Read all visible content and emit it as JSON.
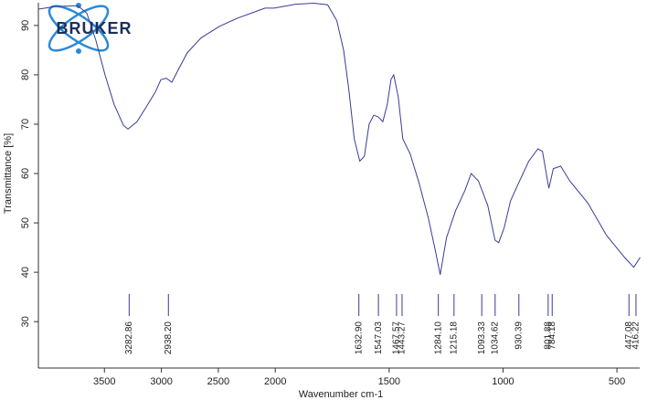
{
  "logo": "BRUKER",
  "chart_data": {
    "type": "line",
    "x_label": "Wavenumber cm-1",
    "y_label": "Transmittance [%]",
    "color": "#3a3a9a",
    "xlim": [
      4080,
      400
    ],
    "x_scale_break": 2000,
    "xticks": [
      3500,
      3000,
      2500,
      2000,
      1500,
      1000,
      500
    ],
    "ylim": [
      20.6,
      94.6
    ],
    "yticks": [
      30,
      40,
      50,
      60,
      70,
      80,
      90
    ],
    "x": [
      4080,
      3935,
      3735,
      3655,
      3575,
      3495,
      3415,
      3334,
      3294,
      3214,
      3133,
      3053,
      3005,
      2957,
      2908,
      2852,
      2772,
      2651,
      2491,
      2330,
      2210,
      2090,
      2009,
      1910,
      1830,
      1770,
      1730,
      1700,
      1677,
      1653,
      1629,
      1609,
      1588,
      1568,
      1548,
      1528,
      1508,
      1492,
      1480,
      1460,
      1440,
      1408,
      1368,
      1328,
      1300,
      1276,
      1248,
      1208,
      1168,
      1140,
      1108,
      1067,
      1035,
      1019,
      995,
      967,
      927,
      887,
      847,
      827,
      799,
      779,
      747,
      707,
      627,
      546,
      466,
      426,
      398
    ],
    "values": [
      93.3,
      93.8,
      94,
      92.5,
      87,
      80,
      74,
      69.8,
      69,
      70.5,
      73.5,
      76.5,
      79,
      79.3,
      78.5,
      81,
      84.5,
      87.5,
      89.8,
      91.5,
      92.5,
      93.5,
      93.5,
      94.3,
      94.5,
      94.2,
      91,
      85,
      77,
      67,
      62.5,
      63.5,
      70,
      71.8,
      71.5,
      70.5,
      74,
      79,
      80,
      75.5,
      67,
      64,
      58,
      51,
      45,
      39.5,
      47,
      52.5,
      56.5,
      60,
      58.5,
      53.5,
      46.5,
      46,
      49,
      54.5,
      58.5,
      62.5,
      65,
      64.5,
      57,
      61,
      61.5,
      58.5,
      54,
      47.5,
      43,
      41,
      43
    ],
    "peaks": [
      3282.86,
      {
        "value": 2938.2,
        "label": "2938.20"
      },
      {
        "value": 1632.9,
        "label": "1632.90"
      },
      1547.03,
      1467.57,
      1443.27,
      {
        "value": 1284.1,
        "label": "1284.10"
      },
      1215.18,
      1093.33,
      1034.62,
      930.39,
      801.88,
      784.18,
      447.08,
      416.22
    ]
  }
}
